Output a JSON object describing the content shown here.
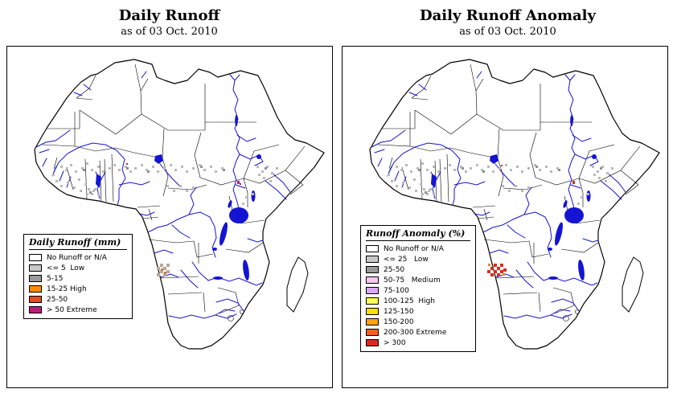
{
  "panels": [
    {
      "title": "Daily Runoff",
      "subtitle": "as of  03 Oct. 2010",
      "legend": {
        "title": "Daily Runoff (mm)",
        "items": [
          {
            "label": "No Runoff or N/A",
            "color": "#ffffff"
          },
          {
            "label": "<= 5  Low",
            "color": "#c9c9c9"
          },
          {
            "label": "5-15",
            "color": "#9a9a9a"
          },
          {
            "label": "15-25 High",
            "color": "#ff8c00"
          },
          {
            "label": "25-50",
            "color": "#e8491d"
          },
          {
            "label": "> 50 Extreme",
            "color": "#c21a7c"
          }
        ]
      }
    },
    {
      "title": "Daily Runoff Anomaly",
      "subtitle": "as of  03 Oct. 2010",
      "legend": {
        "title": "Runoff Anomaly (%)",
        "items": [
          {
            "label": "No Runoff or N/A",
            "color": "#ffffff"
          },
          {
            "label": "<= 25   Low",
            "color": "#c9c9c9"
          },
          {
            "label": "25-50",
            "color": "#9a9a9a"
          },
          {
            "label": "50-75   Medium",
            "color": "#f8c7ee"
          },
          {
            "label": "75-100",
            "color": "#d9a9f5"
          },
          {
            "label": "100-125  High",
            "color": "#ffff55"
          },
          {
            "label": "125-150",
            "color": "#ffe000"
          },
          {
            "label": "150-200",
            "color": "#ffa500"
          },
          {
            "label": "200-300 Extreme",
            "color": "#f2611c"
          },
          {
            "label": "> 300",
            "color": "#d92b1f"
          }
        ]
      }
    }
  ],
  "map": {
    "region": "Africa",
    "water_color": "#1414d2",
    "border_color": "#000000"
  }
}
